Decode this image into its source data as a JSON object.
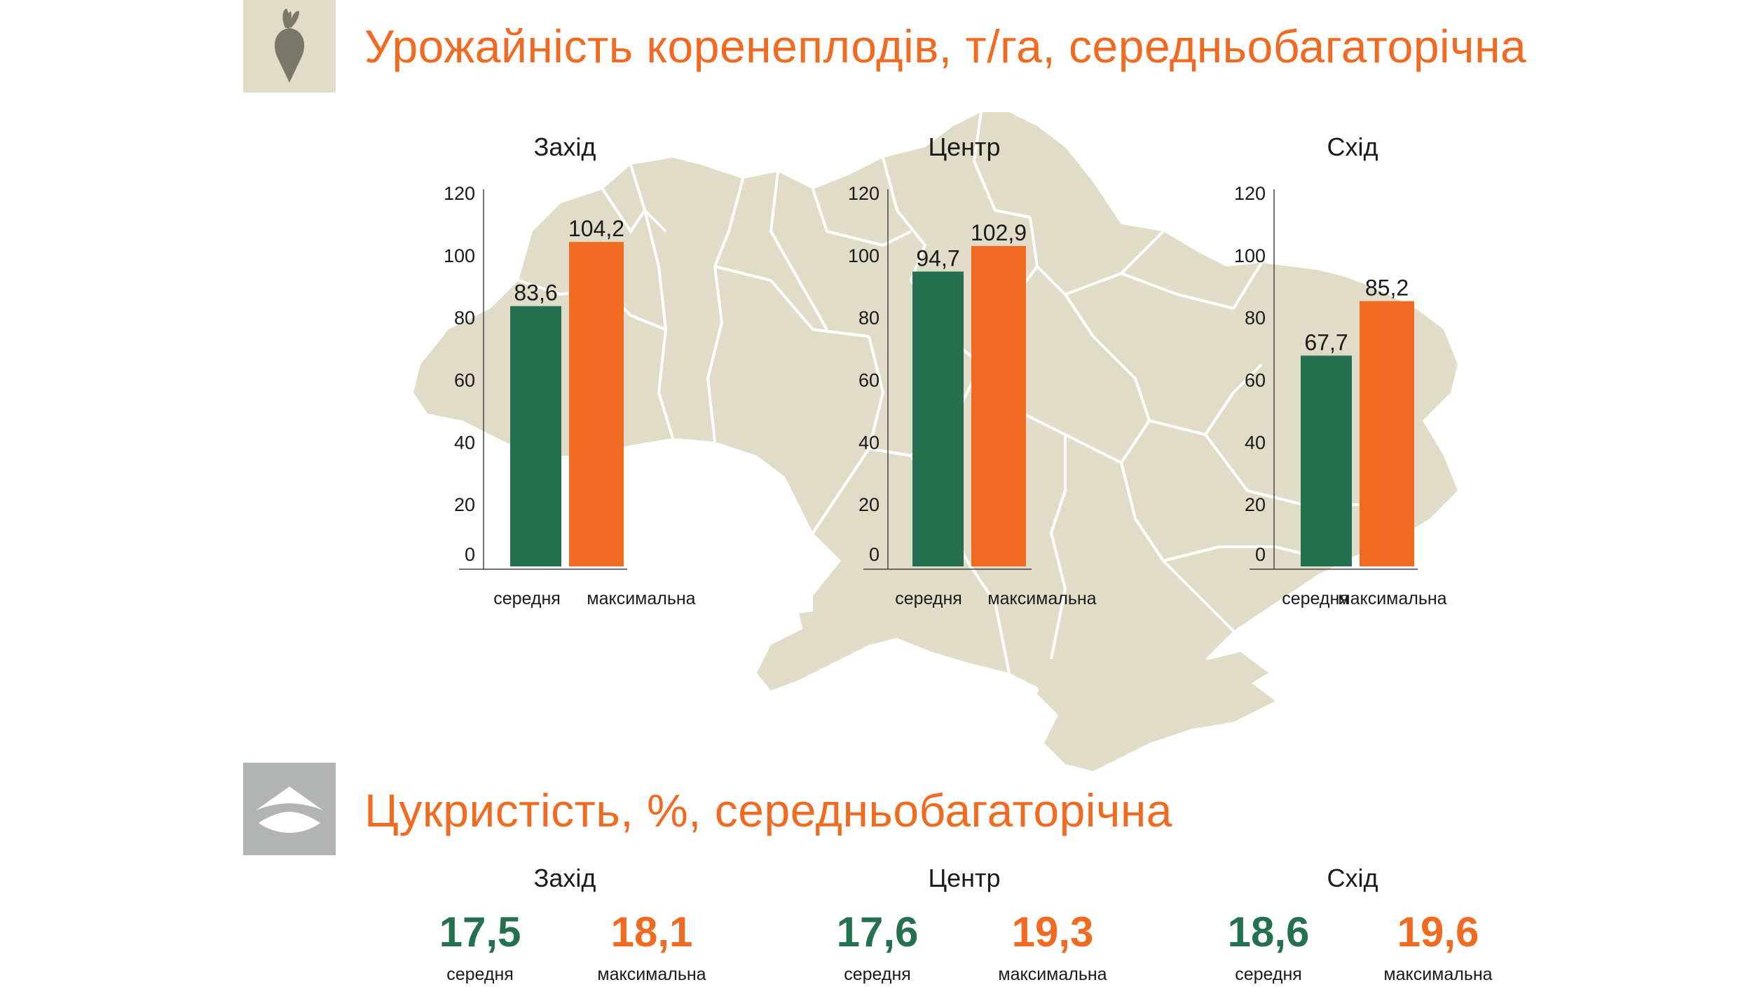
{
  "yield_section": {
    "title": "Урожайність коренеплодів, т/га, середньобагаторічна",
    "icon": "sugar-beet-icon"
  },
  "sugar_section": {
    "title": "Цукристість, %, середньобагаторічна",
    "icon": "sugar-pile-icon",
    "regions": [
      {
        "name": "Захід",
        "avg_value": "17,5",
        "avg_label": "середня",
        "max_value": "18,1",
        "max_label": "максимальна"
      },
      {
        "name": "Центр",
        "avg_value": "17,6",
        "avg_label": "середня",
        "max_value": "19,3",
        "max_label": "максимальна"
      },
      {
        "name": "Схід",
        "avg_value": "18,6",
        "avg_label": "середня",
        "max_value": "19,6",
        "max_label": "максимальна"
      }
    ]
  },
  "colors": {
    "avg": "#257050",
    "max": "#f06b21",
    "title": "#f06b21",
    "map": "#e0dcc8",
    "beet_box": "#e0dcc8",
    "sugar_box": "#b1b4b2"
  },
  "chart_data": [
    {
      "type": "bar",
      "title": "Захід",
      "categories": [
        "середня",
        "максимальна"
      ],
      "values": [
        83.6,
        104.2
      ],
      "value_labels": [
        "83,6",
        "104,2"
      ],
      "ylim": [
        0,
        120
      ],
      "yticks": [
        0,
        20,
        40,
        60,
        80,
        100,
        120
      ]
    },
    {
      "type": "bar",
      "title": "Центр",
      "categories": [
        "середня",
        "максимальна"
      ],
      "values": [
        94.7,
        102.9
      ],
      "value_labels": [
        "94,7",
        "102,9"
      ],
      "ylim": [
        0,
        120
      ],
      "yticks": [
        0,
        20,
        40,
        60,
        80,
        100,
        120
      ]
    },
    {
      "type": "bar",
      "title": "Схід",
      "categories": [
        "середня",
        "максимальна"
      ],
      "values": [
        67.7,
        85.2
      ],
      "value_labels": [
        "67,7",
        "85,2"
      ],
      "ylim": [
        0,
        120
      ],
      "yticks": [
        0,
        20,
        40,
        60,
        80,
        100,
        120
      ]
    }
  ]
}
